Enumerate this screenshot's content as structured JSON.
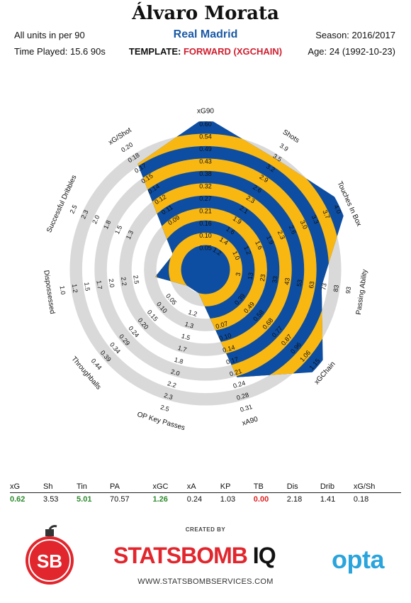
{
  "header": {
    "player": "Álvaro Morata",
    "club": "Real Madrid",
    "units": "All units in per 90",
    "time_played": "Time Played: 15.6 90s",
    "season": "Season: 2016/2017",
    "age": "Age: 24 (1992-10-23)",
    "template_label": "TEMPLATE:",
    "template_value": "FORWARD (XGCHAIN)"
  },
  "chart_data": {
    "type": "radar",
    "colors": {
      "band_blue": "#0d4ea3",
      "band_yellow": "#f9b712",
      "ring_grey": "#d9d9d9",
      "tick_text": "#111111"
    },
    "axes": [
      {
        "name": "xG90",
        "value": 0.62,
        "ticks": [
          "0.05",
          "0.10",
          "0.16",
          "0.21",
          "0.27",
          "0.32",
          "0.38",
          "0.43",
          "0.49",
          "0.54",
          "0.60"
        ]
      },
      {
        "name": "Shots",
        "value": 3.53,
        "ticks": [
          "1.2",
          "1.4",
          "1.6",
          "1.9",
          "2.1",
          "2.3",
          "2.6",
          "2.9",
          "3.2",
          "3.5",
          "3.9"
        ]
      },
      {
        "name": "Touches In Box",
        "value": 5.01,
        "ticks": [
          "1.0",
          "1.2",
          "1.6",
          "1.9",
          "2.3",
          "2.6",
          "3.0",
          "3.3",
          "3.7",
          "4.0"
        ]
      },
      {
        "name": "Passing Ability",
        "value": 70.57,
        "ticks": [
          "3",
          "13",
          "23",
          "33",
          "43",
          "53",
          "63",
          "73",
          "83",
          "93"
        ]
      },
      {
        "name": "xGChain",
        "value": 1.26,
        "ticks": [
          "0.39",
          "0.49",
          "0.58",
          "0.68",
          "0.77",
          "0.87",
          "0.96",
          "1.06",
          "1.15"
        ]
      },
      {
        "name": "xA90",
        "value": 0.24,
        "ticks": [
          "0.07",
          "0.10",
          "0.14",
          "0.17",
          "0.21",
          "0.24",
          "0.28",
          "0.31"
        ]
      },
      {
        "name": "OP Key Passes",
        "value": 1.03,
        "ticks": [
          "1.2",
          "1.3",
          "1.5",
          "1.7",
          "1.8",
          "2.0",
          "2.2",
          "2.3",
          "2.5"
        ]
      },
      {
        "name": "Throughballs",
        "value": 0.0,
        "ticks": [
          "0.05",
          "0.10",
          "0.15",
          "0.20",
          "0.24",
          "0.29",
          "0.34",
          "0.39",
          "0.44"
        ]
      },
      {
        "name": "Dispossessed",
        "value": 2.18,
        "ticks": [
          "2.5",
          "2.2",
          "2.0",
          "1.7",
          "1.5",
          "1.2",
          "1.0"
        ]
      },
      {
        "name": "Successful Dribbles",
        "value": 1.41,
        "ticks": [
          "1.3",
          "1.5",
          "1.8",
          "2.0",
          "2.3",
          "2.5"
        ]
      },
      {
        "name": "xG/Shot",
        "value": 0.18,
        "ticks": [
          "0.09",
          "0.11",
          "0.12",
          "0.14",
          "0.15",
          "0.17",
          "0.18",
          "0.20"
        ]
      }
    ]
  },
  "stats_table": {
    "headers": [
      "xG",
      "Sh",
      "Tin",
      "PA",
      "xGC",
      "xA",
      "KP",
      "TB",
      "Dis",
      "Drib",
      "xG/Sh"
    ],
    "values": [
      "0.62",
      "3.53",
      "5.01",
      "70.57",
      "1.26",
      "0.24",
      "1.03",
      "0.00",
      "2.18",
      "1.41",
      "0.18"
    ],
    "value_colors": [
      "green",
      "",
      "green",
      "",
      "green",
      "",
      "",
      "red",
      "",
      "",
      ""
    ]
  },
  "footer": {
    "created_by": "CREATED BY",
    "brand_main": "STATSBOMB",
    "brand_suffix": "IQ",
    "website": "WWW.STATSBOMBSERVICES.COM",
    "opta": "opta",
    "badge": "SB"
  }
}
